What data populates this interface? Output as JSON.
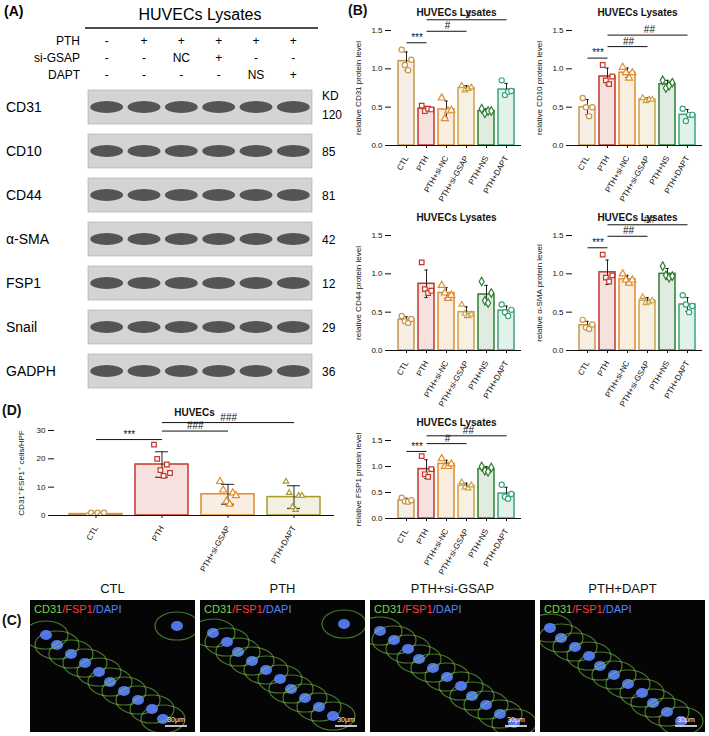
{
  "panel_labels": [
    "(A)",
    "(B)",
    "(C)",
    "(D)"
  ],
  "blot": {
    "title": "HUVECs Lysates",
    "conditions": [
      {
        "label": "PTH",
        "marks": [
          "-",
          "+",
          "+",
          "+",
          "+",
          "+"
        ]
      },
      {
        "label": "si-GSAP",
        "marks": [
          "-",
          "-",
          "NC",
          "+",
          "-",
          "-"
        ]
      },
      {
        "label": "DAPT",
        "marks": [
          "-",
          "-",
          "-",
          "-",
          "NS",
          "+"
        ]
      }
    ],
    "kd_header": "KD",
    "proteins": [
      {
        "name": "CD31",
        "kd": 120
      },
      {
        "name": "CD10",
        "kd": 85
      },
      {
        "name": "CD44",
        "kd": 81
      },
      {
        "name": "α-SMA",
        "kd": 42
      },
      {
        "name": "FSP1",
        "kd": 12
      },
      {
        "name": "Snail",
        "kd": 29
      },
      {
        "name": "GADPH",
        "kd": 36
      }
    ]
  },
  "images": {
    "labels": [
      "CTL",
      "PTH",
      "PTH+si-GSAP",
      "PTH+DAPT"
    ],
    "stain": [
      {
        "text": "CD31",
        "color": "#7fd34e"
      },
      {
        "text": "/FSP1",
        "color": "#ff3b3b"
      },
      {
        "text": "/DAPI",
        "color": "#5b82ff"
      }
    ],
    "scale_bar": "30μm"
  },
  "chart_data": [
    {
      "type": "bar",
      "title": "HUVECs Lysates",
      "y_label": "relative CD31 protein level",
      "categories": [
        "CTL",
        "PTH",
        "PTH+si-NC",
        "PTH+si-GSAP",
        "PTH+NS",
        "PTH+DAPT"
      ],
      "values": [
        1.1,
        0.48,
        0.47,
        0.75,
        0.45,
        0.73
      ],
      "errors": [
        0.12,
        0.03,
        0.11,
        0.03,
        0.03,
        0.08
      ],
      "points": [
        [
          1.25,
          1.05,
          0.98,
          1.12
        ],
        [
          0.52,
          0.45,
          0.48,
          0.47
        ],
        [
          0.62,
          0.35,
          0.45,
          0.46
        ],
        [
          0.78,
          0.72,
          0.74,
          0.76
        ],
        [
          0.48,
          0.42,
          0.45,
          0.45
        ],
        [
          0.85,
          0.66,
          0.7,
          0.71
        ]
      ],
      "colors": [
        "#c8964e",
        "#c0392b",
        "#e08b2e",
        "#c9a24a",
        "#2e7d32",
        "#3aa57a"
      ],
      "markers": [
        "circle",
        "square",
        "triangle",
        "triangle2",
        "diamond",
        "circle"
      ],
      "ylim": [
        0,
        1.5
      ],
      "yticks": [
        {
          "value": 0,
          "label": "0.0"
        },
        {
          "value": 0.5,
          "label": "0.5"
        },
        {
          "value": 1,
          "label": "1.0"
        },
        {
          "value": 1.5,
          "label": "1.5"
        }
      ],
      "annotations": [
        {
          "from": "CTL",
          "to": "PTH",
          "text": "***"
        },
        {
          "from": "PTH",
          "to": "PTH+si-GSAP",
          "text": "#"
        },
        {
          "from": "PTH",
          "to": "PTH+DAPT",
          "text": "#"
        }
      ]
    },
    {
      "type": "bar",
      "title": "HUVECs Lysates",
      "y_label": "relative CD10 protein level",
      "categories": [
        "CTL",
        "PTH",
        "PTH+si-NC",
        "PTH+si-GSAP",
        "PTH+NS",
        "PTH+DAPT"
      ],
      "values": [
        0.5,
        0.9,
        0.95,
        0.6,
        0.8,
        0.4
      ],
      "errors": [
        0.1,
        0.11,
        0.06,
        0.02,
        0.05,
        0.07
      ],
      "points": [
        [
          0.62,
          0.5,
          0.38,
          0.5
        ],
        [
          1.05,
          0.85,
          0.8,
          0.9
        ],
        [
          1.02,
          0.95,
          0.88,
          0.95
        ],
        [
          0.62,
          0.58,
          0.6,
          0.6
        ],
        [
          0.85,
          0.75,
          0.78,
          0.82
        ],
        [
          0.48,
          0.32,
          0.4,
          0.4
        ]
      ],
      "colors": [
        "#c8964e",
        "#c0392b",
        "#e08b2e",
        "#c9a24a",
        "#2e7d32",
        "#3aa57a"
      ],
      "markers": [
        "circle",
        "square",
        "triangle",
        "triangle2",
        "diamond",
        "circle"
      ],
      "ylim": [
        0,
        1.5
      ],
      "yticks": [
        {
          "value": 0,
          "label": "0.0"
        },
        {
          "value": 0.5,
          "label": "0.5"
        },
        {
          "value": 1,
          "label": "1.0"
        },
        {
          "value": 1.5,
          "label": "1.5"
        }
      ],
      "annotations": [
        {
          "from": "CTL",
          "to": "PTH",
          "text": "***"
        },
        {
          "from": "PTH",
          "to": "PTH+si-GSAP",
          "text": "##"
        },
        {
          "from": "PTH",
          "to": "PTH+DAPT",
          "text": "##"
        }
      ]
    },
    {
      "type": "bar",
      "title": "HUVECs Lysates",
      "y_label": "relative CD44 protein level",
      "categories": [
        "CTL",
        "PTH",
        "PTH+si-NC",
        "PTH+si-GSAP",
        "PTH+NS",
        "PTH+DAPT"
      ],
      "values": [
        0.4,
        0.87,
        0.75,
        0.5,
        0.73,
        0.52
      ],
      "errors": [
        0.04,
        0.18,
        0.07,
        0.07,
        0.12,
        0.06
      ],
      "points": [
        [
          0.45,
          0.38,
          0.36,
          0.41
        ],
        [
          1.15,
          0.8,
          0.75,
          0.78
        ],
        [
          0.85,
          0.75,
          0.68,
          0.72
        ],
        [
          0.6,
          0.48,
          0.45,
          0.47
        ],
        [
          0.9,
          0.65,
          0.62,
          0.75
        ],
        [
          0.6,
          0.5,
          0.45,
          0.53
        ]
      ],
      "colors": [
        "#c8964e",
        "#c0392b",
        "#e08b2e",
        "#c9a24a",
        "#2e7d32",
        "#3aa57a"
      ],
      "markers": [
        "circle",
        "square",
        "triangle",
        "triangle2",
        "diamond",
        "circle"
      ],
      "ylim": [
        0,
        1.5
      ],
      "yticks": [
        {
          "value": 0,
          "label": "0.0"
        },
        {
          "value": 0.5,
          "label": "0.5"
        },
        {
          "value": 1,
          "label": "1.0"
        },
        {
          "value": 1.5,
          "label": "1.5"
        }
      ],
      "annotations": []
    },
    {
      "type": "bar",
      "title": "HUVECs Lysates",
      "y_label": "relative α-SMA protein level",
      "categories": [
        "CTL",
        "PTH",
        "PTH+si-NC",
        "PTH+si-GSAP",
        "PTH+NS",
        "PTH+DAPT"
      ],
      "values": [
        0.33,
        1.02,
        0.93,
        0.65,
        1.0,
        0.6
      ],
      "errors": [
        0.05,
        0.16,
        0.05,
        0.04,
        0.07,
        0.09
      ],
      "points": [
        [
          0.4,
          0.3,
          0.28,
          0.34
        ],
        [
          1.25,
          0.95,
          0.9,
          0.98
        ],
        [
          1.0,
          0.92,
          0.88,
          0.92
        ],
        [
          0.7,
          0.62,
          0.63,
          0.65
        ],
        [
          1.1,
          0.98,
          0.95,
          0.97
        ],
        [
          0.72,
          0.6,
          0.5,
          0.58
        ]
      ],
      "colors": [
        "#c8964e",
        "#c0392b",
        "#e08b2e",
        "#c9a24a",
        "#2e7d32",
        "#3aa57a"
      ],
      "markers": [
        "circle",
        "square",
        "triangle",
        "triangle2",
        "diamond",
        "circle"
      ],
      "ylim": [
        0,
        1.5
      ],
      "yticks": [
        {
          "value": 0,
          "label": "0.0"
        },
        {
          "value": 0.5,
          "label": "0.5"
        },
        {
          "value": 1,
          "label": "1.0"
        },
        {
          "value": 1.5,
          "label": "1.5"
        }
      ],
      "annotations": [
        {
          "from": "CTL",
          "to": "PTH",
          "text": "***"
        },
        {
          "from": "PTH",
          "to": "PTH+si-GSAP",
          "text": "##"
        },
        {
          "from": "PTH",
          "to": "PTH+DAPT",
          "text": "##"
        }
      ]
    },
    {
      "type": "bar",
      "title": "HUVECs Lysates",
      "y_label": "relative FSP1 protein level",
      "categories": [
        "CTL",
        "PTH",
        "PTH+si-NC",
        "PTH+si-GSAP",
        "PTH+NS",
        "PTH+DAPT"
      ],
      "values": [
        0.35,
        0.95,
        1.05,
        0.63,
        0.95,
        0.48
      ],
      "errors": [
        0.04,
        0.18,
        0.07,
        0.05,
        0.05,
        0.12
      ],
      "points": [
        [
          0.4,
          0.33,
          0.32,
          0.35
        ],
        [
          1.2,
          0.85,
          0.8,
          0.95
        ],
        [
          1.15,
          1.0,
          1.0,
          1.05
        ],
        [
          0.7,
          0.6,
          0.58,
          0.64
        ],
        [
          1.0,
          0.92,
          0.9,
          0.98
        ],
        [
          0.65,
          0.42,
          0.38,
          0.47
        ]
      ],
      "colors": [
        "#c8964e",
        "#c0392b",
        "#e08b2e",
        "#c9a24a",
        "#2e7d32",
        "#3aa57a"
      ],
      "markers": [
        "circle",
        "square",
        "triangle",
        "triangle2",
        "diamond",
        "circle"
      ],
      "ylim": [
        0,
        1.5
      ],
      "yticks": [
        {
          "value": 0,
          "label": "0.0"
        },
        {
          "value": 0.5,
          "label": "0.5"
        },
        {
          "value": 1,
          "label": "1.0"
        },
        {
          "value": 1.5,
          "label": "1.5"
        }
      ],
      "annotations": [
        {
          "from": "CTL",
          "to": "PTH",
          "text": "***"
        },
        {
          "from": "PTH",
          "to": "PTH+si-GSAP",
          "text": "#"
        },
        {
          "from": "PTH",
          "to": "PTH+DAPT",
          "text": "##"
        }
      ]
    },
    {
      "type": "bar",
      "title": "HUVECs",
      "y_label": "CD31⁺FSP1⁺ cells/HPF",
      "categories": [
        "CTL",
        "PTH",
        "PTH+si-GSAP",
        "PTH+DAPT"
      ],
      "values": [
        0.5,
        18,
        7.5,
        6.5
      ],
      "errors": [
        0.5,
        4.5,
        3.5,
        4
      ],
      "points": [
        [
          0,
          1,
          0,
          1,
          0,
          1
        ],
        [
          25,
          20,
          16,
          14,
          18,
          15
        ],
        [
          12,
          9,
          5,
          4,
          8,
          7
        ],
        [
          12,
          8,
          3,
          2,
          7,
          7
        ]
      ],
      "colors": [
        "#c8964e",
        "#c0392b",
        "#e08b2e",
        "#a89a2c"
      ],
      "markers": [
        "circle",
        "square",
        "triangle",
        "triangle2"
      ],
      "ylim": [
        0,
        30
      ],
      "yticks": [
        0,
        10,
        20,
        30
      ],
      "annotations": [
        {
          "from": "CTL",
          "to": "PTH",
          "text": "***"
        },
        {
          "from": "PTH",
          "to": "PTH+si-GSAP",
          "text": "###"
        },
        {
          "from": "PTH",
          "to": "PTH+DAPT",
          "text": "###"
        }
      ]
    }
  ]
}
